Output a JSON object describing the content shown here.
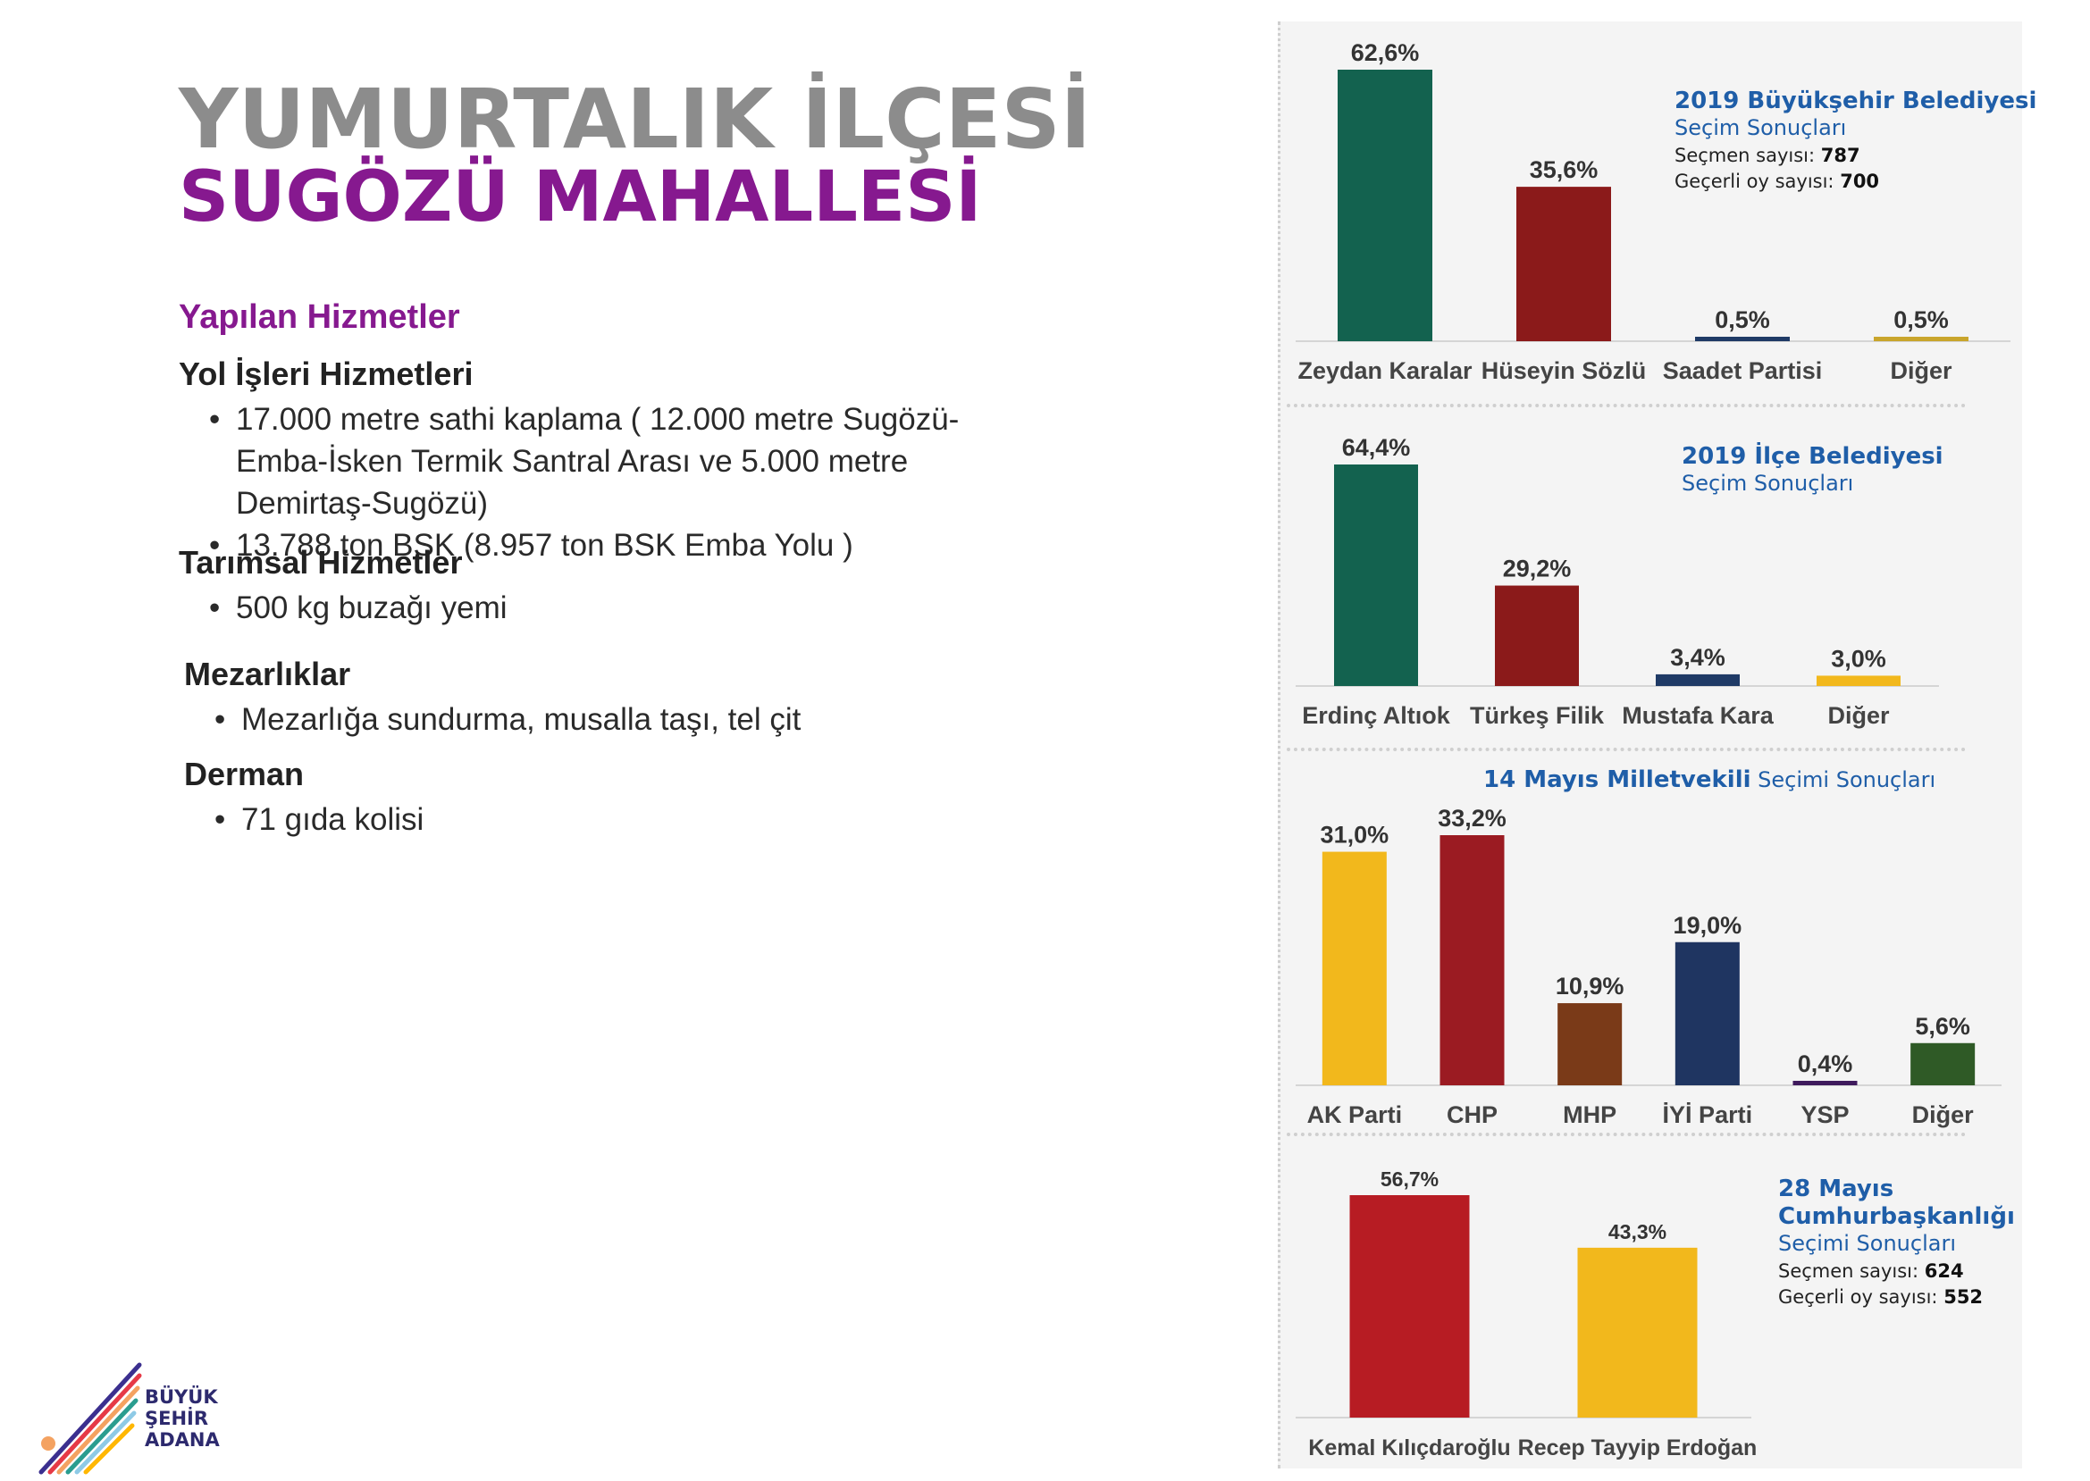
{
  "header": {
    "title_line1": "YUMURTALIK İLÇESİ",
    "title_line2": "SUGÖZÜ MAHALLESİ"
  },
  "services": {
    "heading": "Yapılan Hizmetler",
    "groups": [
      {
        "title": "Yol İşleri Hizmetleri",
        "items": [
          "17.000 metre sathi kaplama ( 12.000 metre Sugözü-Emba-İsken Termik Santral Arası ve 5.000 metre Demirtaş-Sugözü)",
          "13.788 ton BSK (8.957 ton BSK Emba Yolu )"
        ]
      },
      {
        "title": "Tarımsal Hizmetler",
        "items": [
          "500 kg buzağı yemi"
        ]
      },
      {
        "title": "Mezarlıklar",
        "items": [
          "Mezarlığa sundurma, musalla taşı, tel çit"
        ]
      },
      {
        "title": "Derman",
        "items": [
          "71 gıda kolisi"
        ]
      }
    ]
  },
  "chart_data": [
    {
      "type": "bar",
      "title": "2019 Büyükşehir Belediyesi",
      "subtitle": "Seçim Sonuçları",
      "voters_label": "Seçmen sayısı:",
      "voters_value": "787",
      "valid_votes_label": "Geçerli oy sayısı:",
      "valid_votes_value": "700",
      "categories": [
        "Zeydan Karalar",
        "Hüseyin Sözlü",
        "Saadet Partisi",
        "Diğer"
      ],
      "values": [
        62.6,
        35.6,
        0.5,
        0.5
      ],
      "value_labels": [
        "62,6%",
        "35,6%",
        "0,5%",
        "0,5%"
      ],
      "colors": [
        "#13624f",
        "#8b1a1a",
        "#1f3a66",
        "#c9a52c"
      ],
      "ylim": [
        0,
        62.6
      ]
    },
    {
      "type": "bar",
      "title": "2019 İlçe Belediyesi",
      "subtitle": "Seçim Sonuçları",
      "categories": [
        "Erdinç Altıok",
        "Türkeş Filik",
        "Mustafa Kara",
        "Diğer"
      ],
      "values": [
        64.4,
        29.2,
        3.4,
        3.0
      ],
      "value_labels": [
        "64,4%",
        "29,2%",
        "3,4%",
        "3,0%"
      ],
      "colors": [
        "#13624f",
        "#8b1a1a",
        "#1f3a66",
        "#f2b81c"
      ],
      "ylim": [
        0,
        64.4
      ]
    },
    {
      "type": "bar",
      "title": "14 Mayıs Milletvekili",
      "subtitle": "Seçimi Sonuçları",
      "categories": [
        "AK Parti",
        "CHP",
        "MHP",
        "İYİ Parti",
        "YSP",
        "Diğer"
      ],
      "values": [
        31.0,
        33.2,
        10.9,
        19.0,
        0.4,
        5.6
      ],
      "value_labels": [
        "31,0%",
        "33,2%",
        "10,9%",
        "19,0%",
        "0,4%",
        "5,6%"
      ],
      "colors": [
        "#f2b81c",
        "#9b1b22",
        "#7a3a18",
        "#1f3561",
        "#3e1a5c",
        "#2f5a26"
      ],
      "ylim": [
        0,
        33.2
      ]
    },
    {
      "type": "bar",
      "title": "28 Mayıs Cumhurbaşkanlığı",
      "subtitle": "Seçimi Sonuçları",
      "voters_label": "Seçmen sayısı:",
      "voters_value": "624",
      "valid_votes_label": "Geçerli oy sayısı:",
      "valid_votes_value": "552",
      "categories": [
        "Kemal Kılıçdaroğlu",
        "Recep Tayyip Erdoğan"
      ],
      "values": [
        56.7,
        43.3
      ],
      "value_labels": [
        "56,7%",
        "43,3%"
      ],
      "colors": [
        "#b71c23",
        "#f2b81c"
      ],
      "ylim": [
        0,
        56.7
      ]
    }
  ],
  "logo": {
    "line1": "BÜYÜK",
    "line2": "ŞEHİR",
    "line3": "ADANA"
  }
}
